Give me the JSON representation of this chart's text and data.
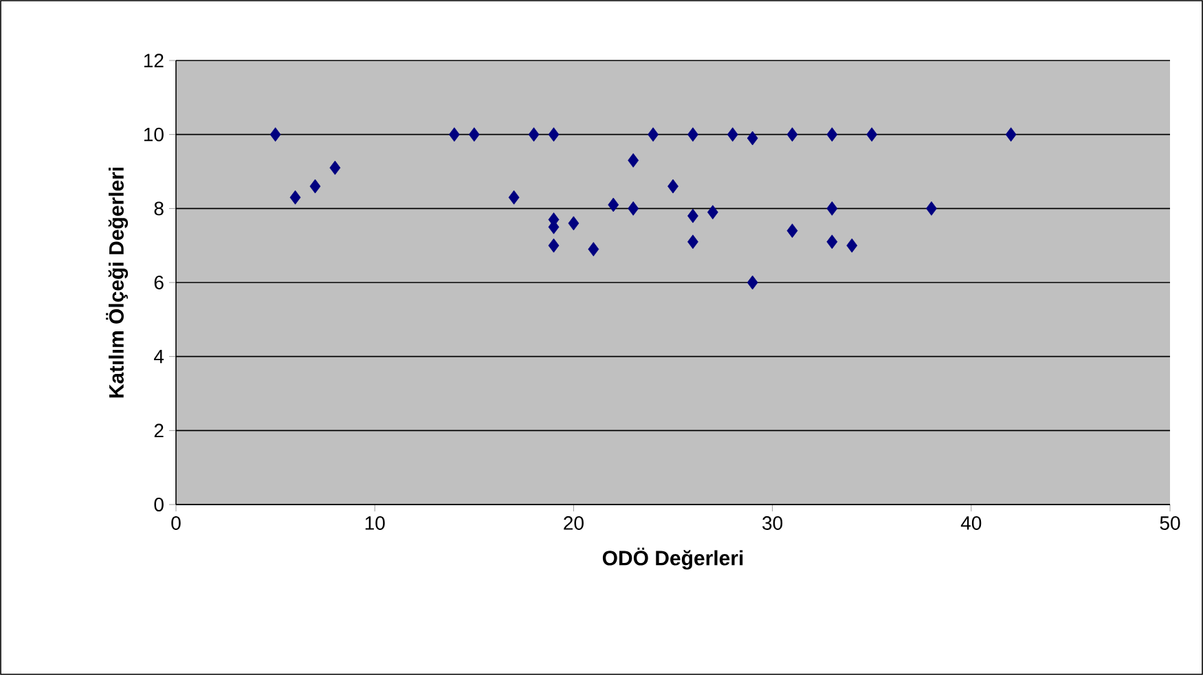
{
  "chart_data": {
    "type": "scatter",
    "xlabel": "ODÖ Değerleri",
    "ylabel": "Katılım Ölçeği Değerleri",
    "x": [
      5,
      6,
      7,
      8,
      14,
      15,
      17,
      18,
      19,
      19,
      19,
      19,
      20,
      21,
      22,
      23,
      23,
      24,
      25,
      26,
      26,
      26,
      27,
      28,
      29,
      29,
      31,
      31,
      33,
      33,
      33,
      34,
      35,
      38,
      42
    ],
    "values": [
      10,
      8.3,
      8.6,
      9.1,
      10,
      10,
      8.3,
      10,
      10,
      7.7,
      7.5,
      7.0,
      7.6,
      6.9,
      8.1,
      9.3,
      8.0,
      10,
      8.6,
      10,
      7.8,
      7.1,
      7.9,
      10,
      9.9,
      6.0,
      10,
      7.4,
      10,
      8.0,
      7.1,
      7.0,
      10,
      8.0,
      10
    ],
    "color": "#000080",
    "marker": "diamond",
    "grid": "y",
    "xlim": [
      0,
      50
    ],
    "xticks": [
      0,
      10,
      20,
      30,
      40,
      50
    ],
    "ylim": [
      0,
      12
    ],
    "yticks": [
      0,
      2,
      4,
      6,
      8,
      10,
      12
    ]
  }
}
